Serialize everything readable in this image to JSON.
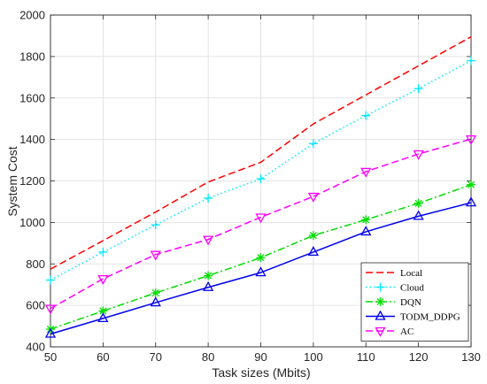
{
  "chart_data": {
    "type": "line",
    "title": "",
    "xlabel": "Task sizes (Mbits)",
    "ylabel": "System Cost",
    "xlim": [
      50,
      130
    ],
    "ylim": [
      400,
      2000
    ],
    "x": [
      50,
      60,
      70,
      80,
      90,
      100,
      110,
      120,
      130
    ],
    "xticks": [
      "50",
      "60",
      "70",
      "80",
      "90",
      "100",
      "110",
      "120",
      "130"
    ],
    "yticks": [
      "400",
      "600",
      "800",
      "1000",
      "1200",
      "1400",
      "1600",
      "1800",
      "2000"
    ],
    "grid": true,
    "legend_position": "bottom-right",
    "series": [
      {
        "name": "Local",
        "color": "#ff0000",
        "style": "dashed",
        "marker": "none",
        "values": [
          775,
          912,
          1050,
          1195,
          1290,
          1475,
          1615,
          1755,
          1895
        ]
      },
      {
        "name": "Cloud",
        "color": "#00e5ff",
        "style": "dotted",
        "marker": "plus",
        "values": [
          722,
          857,
          988,
          1117,
          1210,
          1380,
          1515,
          1645,
          1780
        ]
      },
      {
        "name": "DQN",
        "color": "#00dd00",
        "style": "dashdot",
        "marker": "asterisk",
        "values": [
          485,
          573,
          660,
          743,
          830,
          937,
          1013,
          1092,
          1182
        ]
      },
      {
        "name": "TODM_DDPG",
        "color": "#0000ee",
        "style": "solid",
        "marker": "triangle-up",
        "values": [
          462,
          537,
          613,
          687,
          758,
          857,
          955,
          1030,
          1095
        ]
      },
      {
        "name": "AC",
        "color": "#ff00ff",
        "style": "dashed",
        "marker": "triangle-down",
        "values": [
          585,
          728,
          845,
          918,
          1025,
          1125,
          1245,
          1330,
          1402
        ]
      }
    ]
  }
}
